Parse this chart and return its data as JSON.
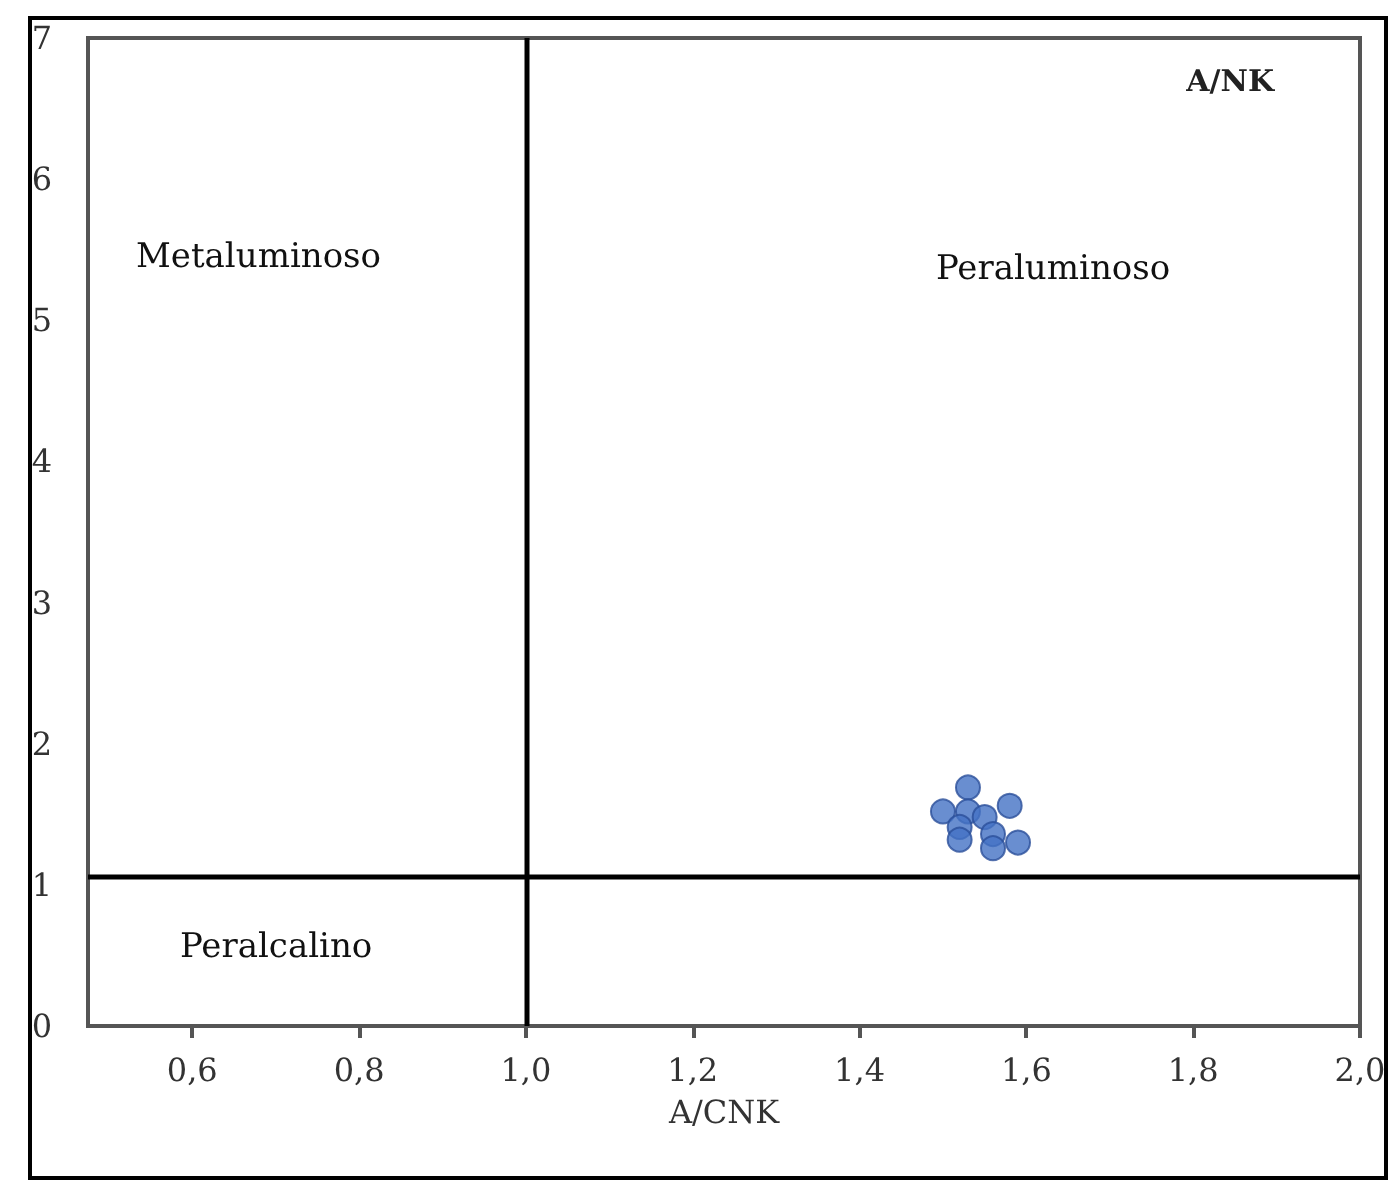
{
  "chart_data": {
    "type": "scatter",
    "xlabel": "A/CNK",
    "ylabel": "A/NK",
    "x": [
      1.53,
      1.5,
      1.53,
      1.55,
      1.58,
      1.52,
      1.52,
      1.56,
      1.59,
      1.56
    ],
    "values": [
      1.69,
      1.52,
      1.52,
      1.48,
      1.56,
      1.41,
      1.32,
      1.36,
      1.3,
      1.26
    ],
    "color": "#4472c4",
    "marker": "circle",
    "grid": false,
    "xlim": [
      0.475,
      2.0
    ],
    "ylim": [
      0,
      7
    ],
    "xticks": [
      {
        "value": 0.6,
        "label": "0,6"
      },
      {
        "value": 0.8,
        "label": "0,8"
      },
      {
        "value": 1.0,
        "label": "1,0"
      },
      {
        "value": 1.2,
        "label": "1,2"
      },
      {
        "value": 1.4,
        "label": "1,4"
      },
      {
        "value": 1.6,
        "label": "1,6"
      },
      {
        "value": 1.8,
        "label": "1,8"
      },
      {
        "value": 2.0,
        "label": "2,0"
      }
    ],
    "yticks": [
      0,
      1,
      2,
      3,
      4,
      5,
      6,
      7
    ],
    "ref_lines": [
      {
        "axis": "x",
        "value": 1.0,
        "color": "#000000"
      },
      {
        "axis": "y",
        "value": 1.06,
        "color": "#000000"
      }
    ],
    "annotations": [
      "Metaluminoso",
      "Peraluminoso",
      "Peralcalino"
    ]
  }
}
